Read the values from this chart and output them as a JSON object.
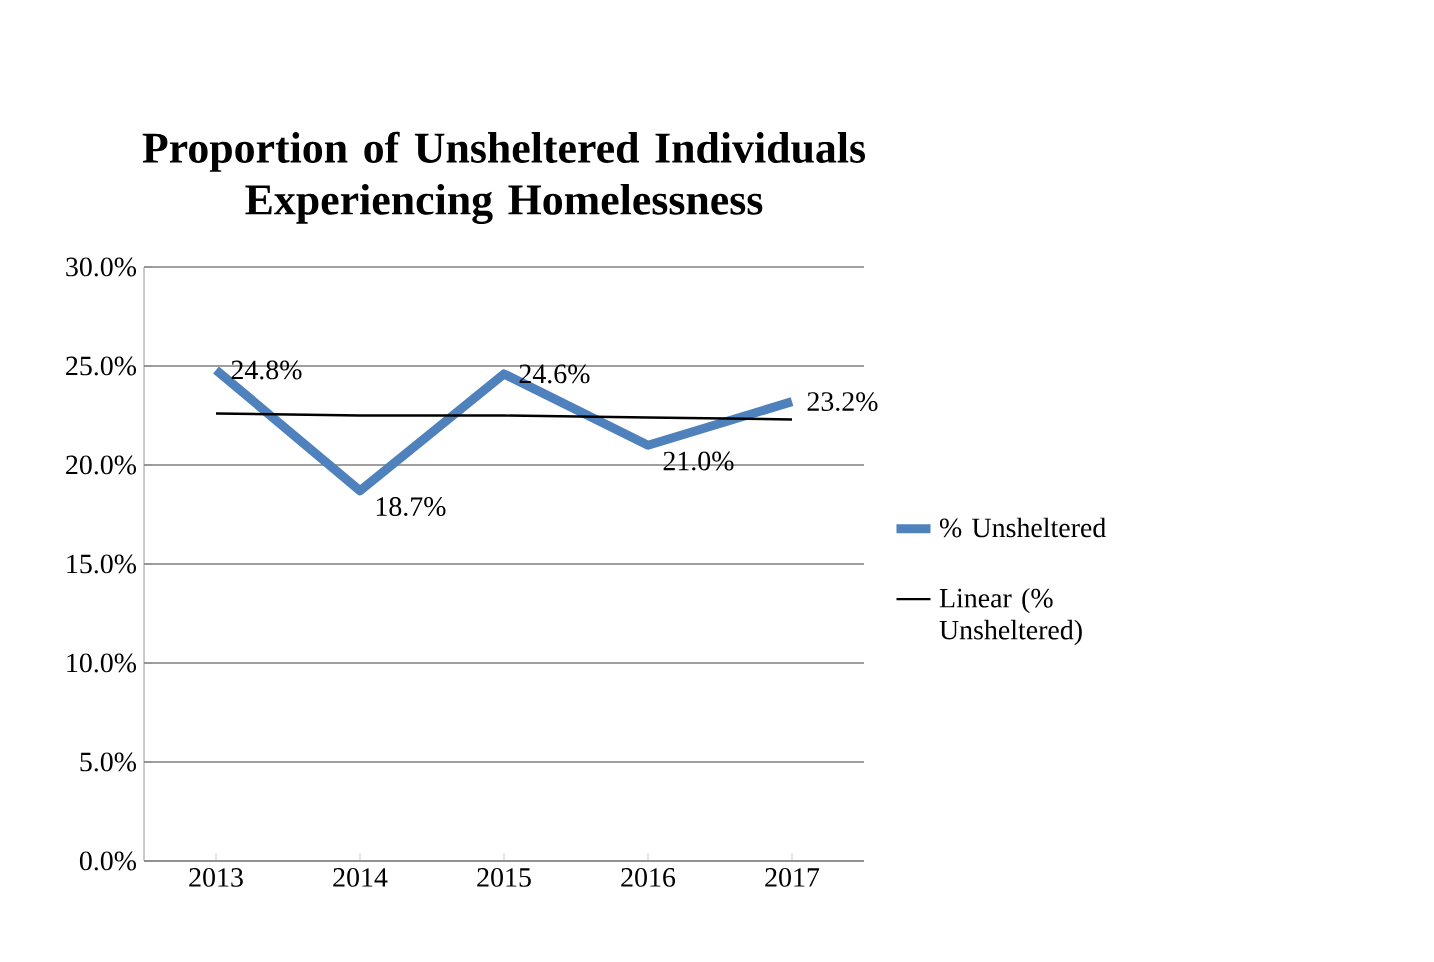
{
  "chart_data": {
    "type": "line",
    "title": "Proportion of Unsheltered Individuals Experiencing Homelessness",
    "categories": [
      "2013",
      "2014",
      "2015",
      "2016",
      "2017"
    ],
    "series": [
      {
        "name": "% Unsheltered",
        "color": "#4f81bd",
        "values": [
          24.8,
          18.7,
          24.6,
          21.0,
          23.2
        ],
        "value_labels": [
          "24.8%",
          "18.7%",
          "24.6%",
          "21.0%",
          "23.2%"
        ]
      },
      {
        "name": "Linear (% Unsheltered)",
        "color": "#000000",
        "values": [
          22.6,
          22.5,
          22.5,
          22.4,
          22.3
        ]
      }
    ],
    "ylim": [
      0,
      30
    ],
    "yticks": [
      {
        "value": 0,
        "label": "0.0%"
      },
      {
        "value": 5,
        "label": "5.0%"
      },
      {
        "value": 10,
        "label": "10.0%"
      },
      {
        "value": 15,
        "label": "15.0%"
      },
      {
        "value": 20,
        "label": "20.0%"
      },
      {
        "value": 25,
        "label": "25.0%"
      },
      {
        "value": 30,
        "label": "30.0%"
      }
    ],
    "grid": "y",
    "legend": "right",
    "marker": "none"
  }
}
